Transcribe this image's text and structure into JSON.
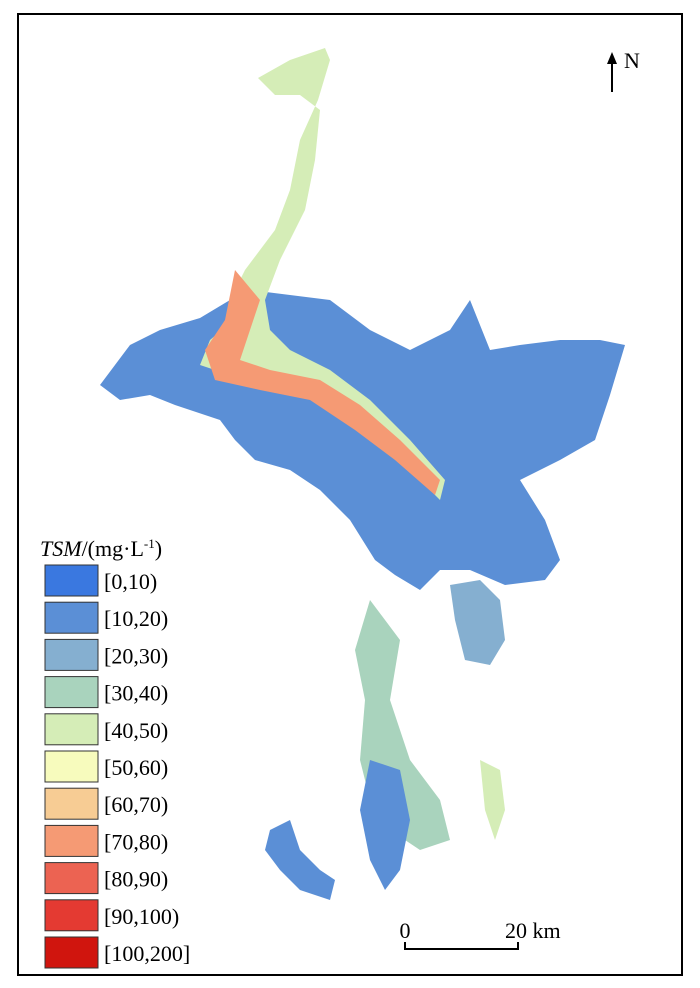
{
  "legend": {
    "title": {
      "italic": "TSM",
      "unit": "/(mg·L",
      "superscript": "-1",
      "close": ")"
    },
    "items": [
      {
        "label": "[0,10)",
        "color": "#3a78e0"
      },
      {
        "label": "[10,20)",
        "color": "#5b8fd6"
      },
      {
        "label": "[20,30)",
        "color": "#85afd0"
      },
      {
        "label": "[30,40)",
        "color": "#a9d3bd"
      },
      {
        "label": "[40,50)",
        "color": "#d5edb7"
      },
      {
        "label": "[50,60)",
        "color": "#f7fbbd"
      },
      {
        "label": "[60,70)",
        "color": "#f7cc94"
      },
      {
        "label": "[70,80)",
        "color": "#f59a74"
      },
      {
        "label": "[80,90)",
        "color": "#ec6352"
      },
      {
        "label": "[90,100)",
        "color": "#e43a32"
      },
      {
        "label": "[100,200]",
        "color": "#d0150e"
      }
    ]
  },
  "north_arrow": {
    "label": "N"
  },
  "scale_bar": {
    "start": "0",
    "end": "20 km"
  }
}
